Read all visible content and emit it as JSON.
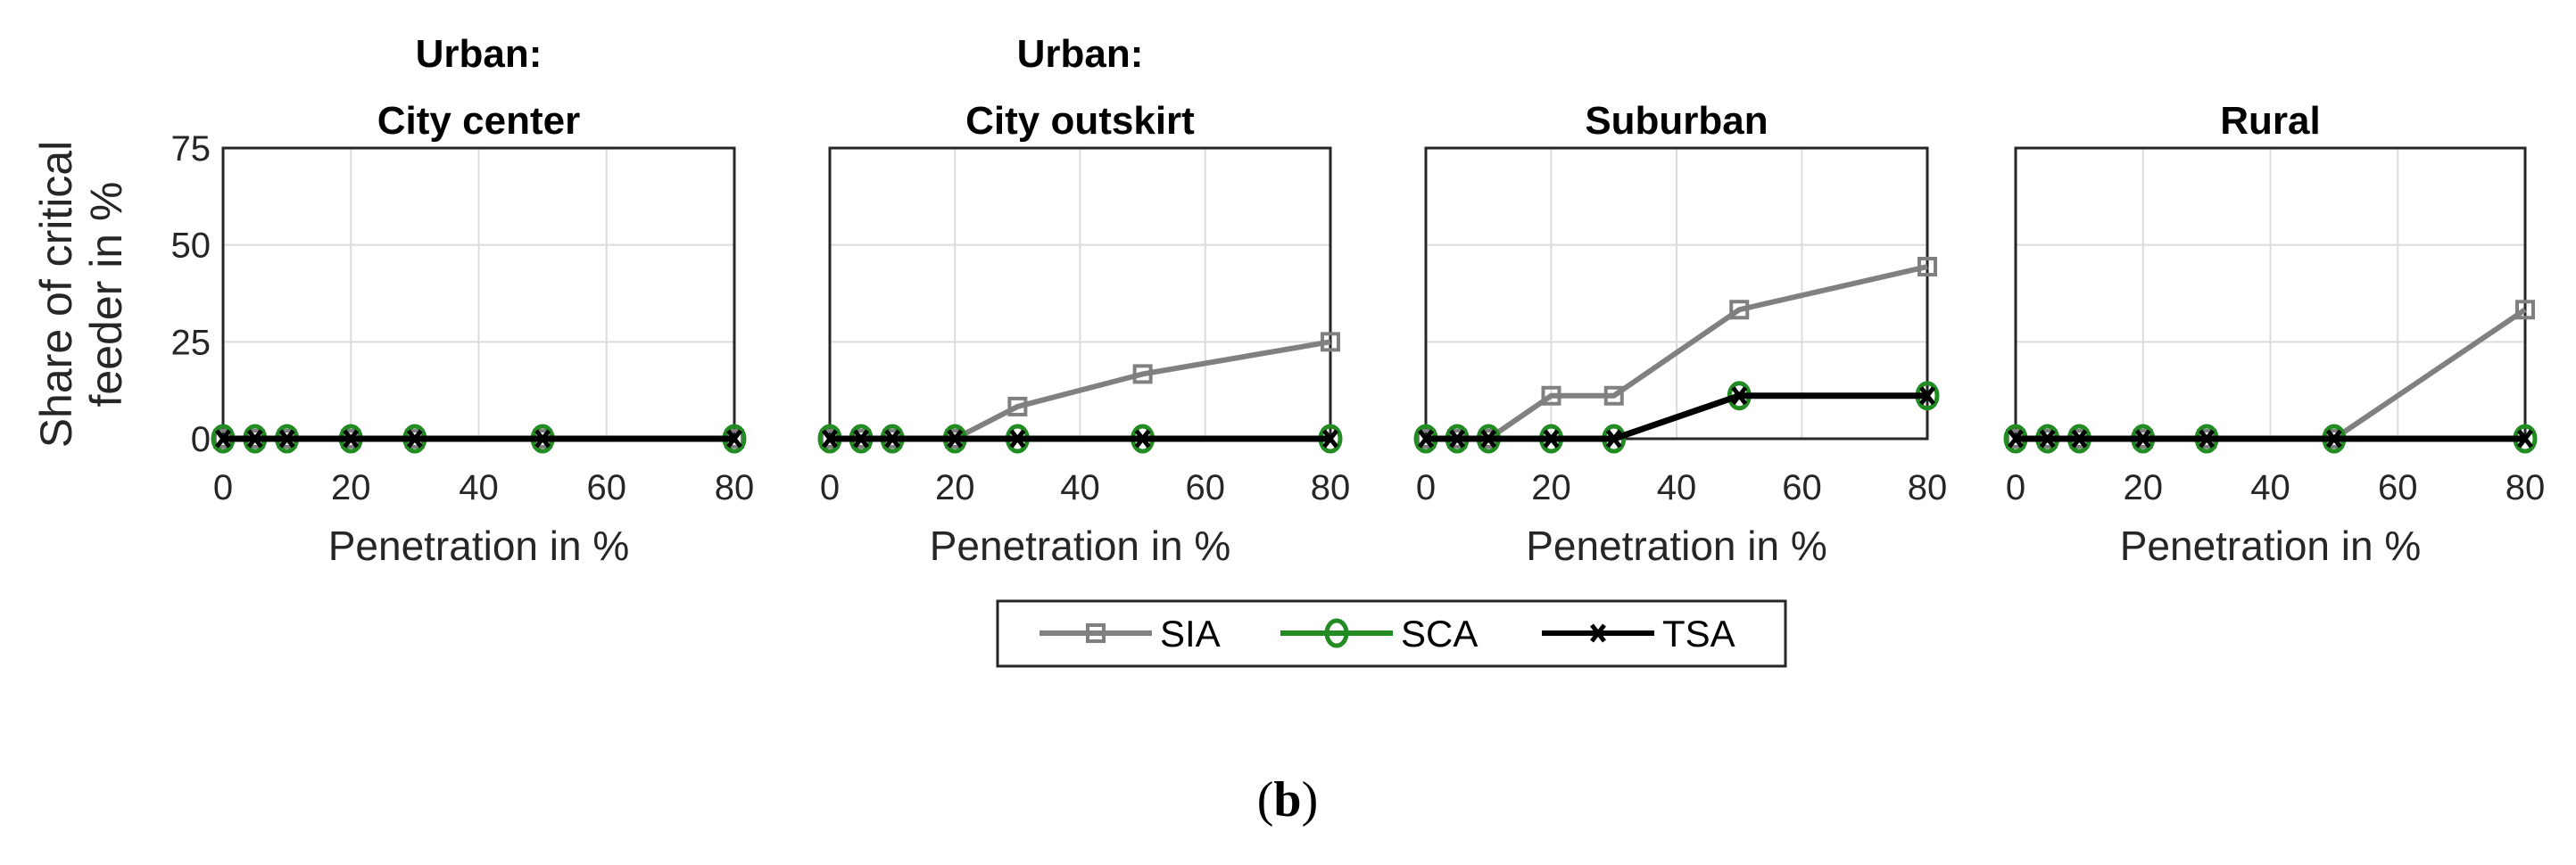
{
  "chart_data": {
    "type": "line",
    "caption": {
      "open": "(",
      "letter": "b",
      "close": ")"
    },
    "ylabel_lines": [
      "Share of critical",
      "feeder in %"
    ],
    "xlabel": "Penetration in %",
    "x": [
      0,
      5,
      10,
      20,
      30,
      50,
      80
    ],
    "xlim": [
      0,
      80
    ],
    "ylim": [
      0,
      75
    ],
    "xticks": [
      0,
      20,
      40,
      60,
      80
    ],
    "yticks": [
      0,
      25,
      50,
      75
    ],
    "grid": true,
    "legend": {
      "placement": "bottom-center",
      "entries": [
        "SIA",
        "SCA",
        "TSA"
      ]
    },
    "series_styles": {
      "SIA": {
        "color": "#808080",
        "marker": "square"
      },
      "SCA": {
        "color": "#228B22",
        "marker": "circle"
      },
      "TSA": {
        "color": "#000000",
        "marker": "x"
      }
    },
    "panels": [
      {
        "title_lines": [
          "Urban:",
          "City center"
        ],
        "series": [
          {
            "name": "SIA",
            "values": [
              0,
              0,
              0,
              0,
              0,
              0,
              0
            ]
          },
          {
            "name": "SCA",
            "values": [
              0,
              0,
              0,
              0,
              0,
              0,
              0
            ]
          },
          {
            "name": "TSA",
            "values": [
              0,
              0,
              0,
              0,
              0,
              0,
              0
            ]
          }
        ]
      },
      {
        "title_lines": [
          "Urban:",
          "City outskirt"
        ],
        "series": [
          {
            "name": "SIA",
            "values": [
              0,
              0,
              0,
              0,
              8.3,
              16.7,
              25
            ]
          },
          {
            "name": "SCA",
            "values": [
              0,
              0,
              0,
              0,
              0,
              0,
              0
            ]
          },
          {
            "name": "TSA",
            "values": [
              0,
              0,
              0,
              0,
              0,
              0,
              0
            ]
          }
        ]
      },
      {
        "title_lines": [
          "",
          "Suburban"
        ],
        "series": [
          {
            "name": "SIA",
            "values": [
              0,
              0,
              0,
              11.1,
              11.1,
              33.3,
              44.4
            ]
          },
          {
            "name": "SCA",
            "values": [
              0,
              0,
              0,
              0,
              0,
              11.1,
              11.1
            ]
          },
          {
            "name": "TSA",
            "values": [
              0,
              0,
              0,
              0,
              0,
              11.1,
              11.1
            ]
          }
        ]
      },
      {
        "title_lines": [
          "",
          "Rural"
        ],
        "series": [
          {
            "name": "SIA",
            "values": [
              0,
              0,
              0,
              0,
              0,
              0,
              33.3
            ]
          },
          {
            "name": "SCA",
            "values": [
              0,
              0,
              0,
              0,
              0,
              0,
              0
            ]
          },
          {
            "name": "TSA",
            "values": [
              0,
              0,
              0,
              0,
              0,
              0,
              0
            ]
          }
        ]
      }
    ]
  }
}
